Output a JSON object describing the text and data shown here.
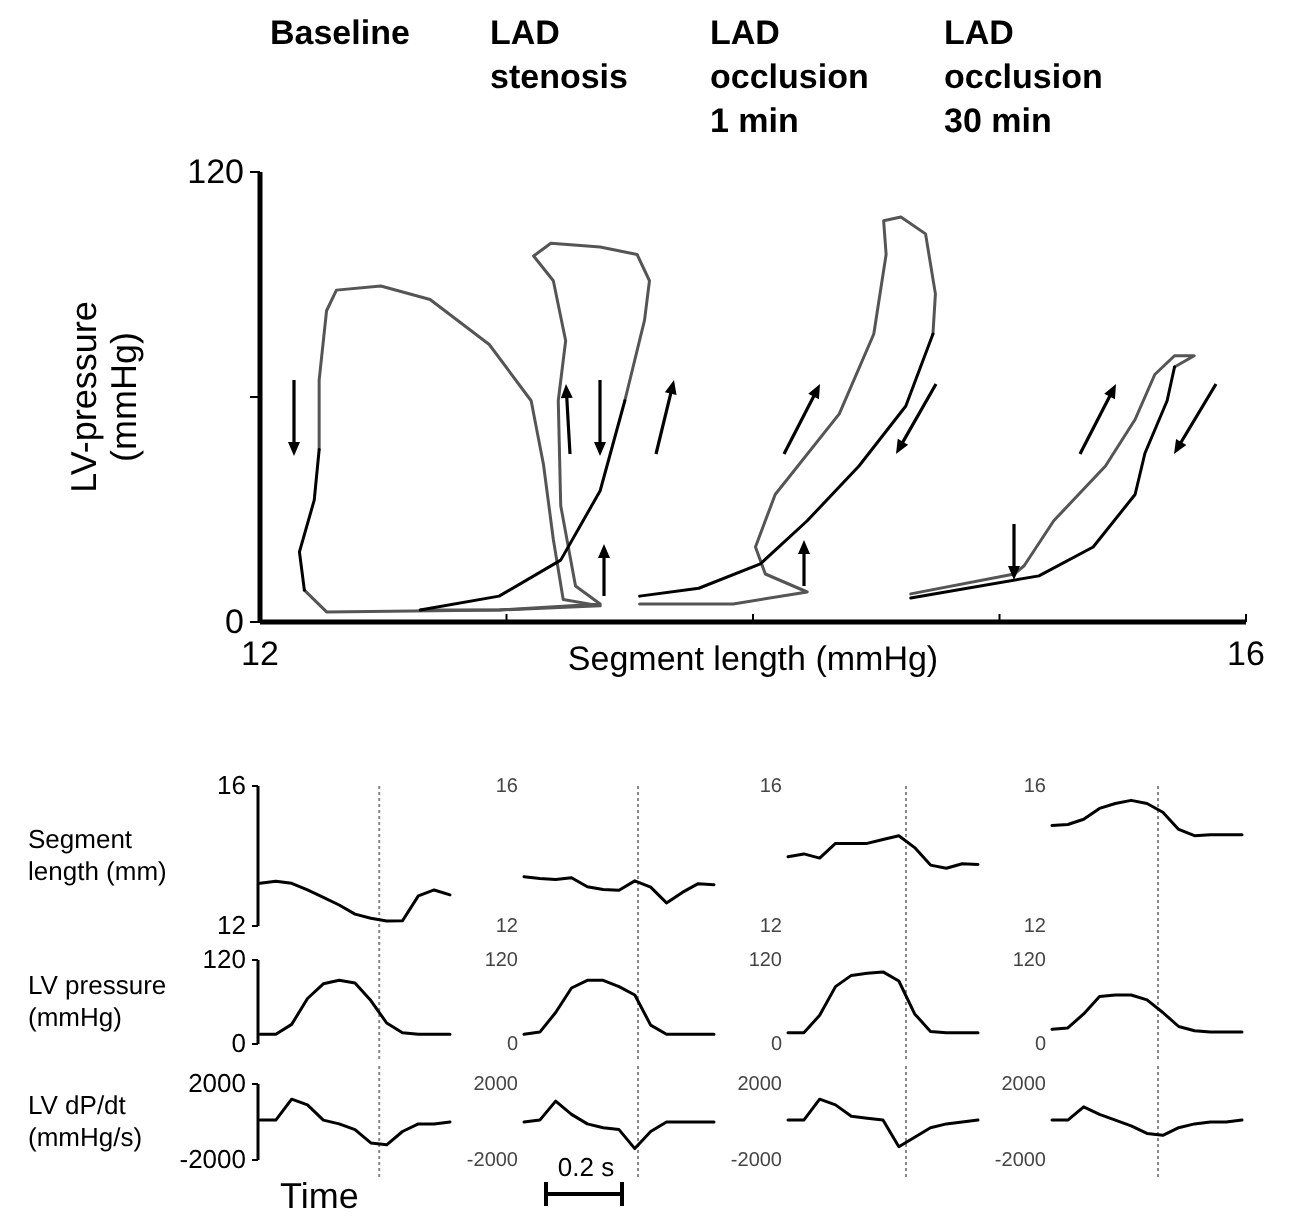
{
  "chart_data": [
    {
      "type": "line",
      "xlabel": "Segment length (mmHg)",
      "ylabel": "LV-pressure (mmHg)",
      "xlim": [
        12,
        16
      ],
      "ylim": [
        0,
        120
      ],
      "xticks": [
        12,
        {
          "value": 13,
          "label": null
        },
        {
          "value": 14,
          "label": null
        },
        {
          "value": 15,
          "label": null
        },
        16
      ],
      "yticks": [
        0,
        {
          "value": 60,
          "label": null
        },
        120
      ],
      "annotations": [
        "Baseline",
        "LAD stenosis",
        "LAD occlusion 1 min",
        "LAD occlusion 30 min"
      ],
      "series": [
        {
          "color": "#555555",
          "x": [
            12.24,
            12.24,
            12.27,
            12.31,
            12.49,
            12.69,
            12.93,
            13.1,
            13.15,
            13.19,
            13.23,
            13.38,
            12.97,
            12.27,
            12.18
          ],
          "values": [
            46,
            64.5,
            83,
            88.5,
            89.6,
            86,
            74,
            59,
            42,
            22,
            6,
            4.3,
            3.2,
            2.7,
            8.5
          ]
        },
        {
          "color": "#000000",
          "x": [
            12.24,
            12.22,
            12.16,
            12.18
          ],
          "values": [
            46,
            32.5,
            18.7,
            8.5
          ]
        },
        {
          "color": "#555555",
          "x": [
            13.48,
            13.56,
            13.58,
            13.53,
            13.38,
            13.18,
            13.11,
            13.19,
            13.24,
            13.21,
            13.22,
            13.28,
            13.38,
            12.97,
            12.65
          ],
          "values": [
            59,
            80.5,
            91,
            98,
            100,
            101,
            97.6,
            91,
            75,
            59,
            31,
            9.6,
            4.8,
            3.2,
            3.2
          ]
        },
        {
          "color": "#000000",
          "x": [
            12.65,
            12.97,
            13.22,
            13.38,
            13.48
          ],
          "values": [
            3.2,
            6.9,
            16.5,
            35,
            59
          ]
        },
        {
          "color": "#555555",
          "x": [
            14.73,
            14.74,
            14.7,
            14.6,
            14.53,
            14.54,
            14.49,
            14.35,
            14.09,
            14.01,
            14.05,
            14.22,
            13.92,
            13.54
          ],
          "values": [
            76.8,
            87.5,
            103.5,
            108,
            107,
            98,
            76.8,
            55.5,
            34,
            20,
            12.8,
            8,
            4.8,
            4.8
          ]
        },
        {
          "color": "#000000",
          "x": [
            13.54,
            13.78,
            14.03,
            14.22,
            14.43,
            14.62,
            14.73
          ],
          "values": [
            6.9,
            9,
            15.5,
            27,
            41.6,
            57.6,
            76.8
          ]
        },
        {
          "color": "#555555",
          "x": [
            14.64,
            15.06,
            15.1,
            15.22,
            15.43,
            15.55,
            15.63,
            15.71,
            15.79,
            15.71
          ],
          "values": [
            7.5,
            12.8,
            15,
            27,
            41.6,
            54,
            66,
            71,
            71,
            68
          ]
        },
        {
          "color": "#000000",
          "x": [
            15.71,
            15.68,
            15.59,
            15.55,
            15.38,
            15.16,
            14.64
          ],
          "values": [
            68,
            59,
            45,
            34,
            20,
            12.3,
            6.4
          ]
        }
      ]
    },
    {
      "type": "line",
      "ylabel": "Segment length (mm)",
      "ylim": [
        12,
        16
      ],
      "yticks": [
        12,
        16
      ],
      "tick_labels": "y",
      "categories": [
        null,
        null,
        null,
        null,
        null,
        null,
        null,
        null,
        null,
        null,
        null,
        null,
        null
      ],
      "series": [
        {
          "color": "#000000",
          "values": [
            13.22,
            13.28,
            13.22,
            13.03,
            12.82,
            12.6,
            12.34,
            12.22,
            12.14,
            12.15,
            12.86,
            13.03,
            12.89
          ]
        }
      ]
    },
    {
      "type": "line",
      "ylim": [
        12,
        16
      ],
      "yticks": [
        12,
        16
      ],
      "tick_labels": "y",
      "categories": [
        null,
        null,
        null,
        null,
        null,
        null,
        null,
        null,
        null,
        null,
        null,
        null,
        null
      ],
      "series": [
        {
          "color": "#000000",
          "values": [
            13.41,
            13.36,
            13.33,
            13.38,
            13.12,
            13.04,
            13.02,
            13.29,
            13.11,
            12.66,
            12.96,
            13.21,
            13.18
          ]
        }
      ]
    },
    {
      "type": "line",
      "ylim": [
        12,
        16
      ],
      "yticks": [
        12,
        16
      ],
      "tick_labels": "y",
      "categories": [
        null,
        null,
        null,
        null,
        null,
        null,
        null,
        null,
        null,
        null,
        null,
        null,
        null
      ],
      "series": [
        {
          "color": "#000000",
          "values": [
            13.98,
            14.06,
            13.94,
            14.36,
            14.36,
            14.36,
            14.47,
            14.58,
            14.24,
            13.74,
            13.65,
            13.78,
            13.76
          ]
        }
      ]
    },
    {
      "type": "line",
      "ylim": [
        12,
        16
      ],
      "yticks": [
        12,
        16
      ],
      "tick_labels": "y",
      "categories": [
        null,
        null,
        null,
        null,
        null,
        null,
        null,
        null,
        null,
        null,
        null,
        null,
        null
      ],
      "series": [
        {
          "color": "#000000",
          "values": [
            14.87,
            14.9,
            15.05,
            15.36,
            15.5,
            15.59,
            15.5,
            15.25,
            14.76,
            14.58,
            14.61,
            14.61,
            14.61
          ]
        }
      ]
    },
    {
      "type": "line",
      "ylabel": "LV pressure (mmHg)",
      "ylim": [
        0,
        120
      ],
      "yticks": [
        0,
        120
      ],
      "tick_labels": "y",
      "categories": [
        null,
        null,
        null,
        null,
        null,
        null,
        null,
        null,
        null,
        null,
        null,
        null,
        null
      ],
      "series": [
        {
          "color": "#000000",
          "values": [
            14,
            14,
            28,
            65,
            86,
            91,
            87,
            62,
            30,
            16,
            14,
            14,
            14
          ]
        }
      ]
    },
    {
      "type": "line",
      "ylim": [
        0,
        120
      ],
      "yticks": [
        0,
        120
      ],
      "tick_labels": "y",
      "categories": [
        null,
        null,
        null,
        null,
        null,
        null,
        null,
        null,
        null,
        null,
        null,
        null,
        null
      ],
      "series": [
        {
          "color": "#000000",
          "values": [
            14,
            17,
            45,
            80,
            91,
            91,
            82,
            70,
            27,
            14,
            14,
            14,
            14
          ]
        }
      ]
    },
    {
      "type": "line",
      "ylim": [
        0,
        120
      ],
      "yticks": [
        0,
        120
      ],
      "tick_labels": "y",
      "categories": [
        null,
        null,
        null,
        null,
        null,
        null,
        null,
        null,
        null,
        null,
        null,
        null,
        null
      ],
      "series": [
        {
          "color": "#000000",
          "values": [
            16,
            16,
            41,
            82,
            98,
            101,
            103,
            90,
            43,
            18,
            16,
            16,
            16
          ]
        }
      ]
    },
    {
      "type": "line",
      "ylim": [
        0,
        120
      ],
      "yticks": [
        0,
        120
      ],
      "tick_labels": "y",
      "categories": [
        null,
        null,
        null,
        null,
        null,
        null,
        null,
        null,
        null,
        null,
        null,
        null,
        null
      ],
      "series": [
        {
          "color": "#000000",
          "values": [
            21,
            23,
            43,
            68,
            70,
            70,
            63,
            45,
            25,
            19,
            17,
            17,
            17
          ]
        }
      ]
    },
    {
      "type": "line",
      "ylabel": "LV dP/dt (mmHg/s)",
      "xlabel": "Time",
      "ylim": [
        -2000,
        2000
      ],
      "yticks": [
        -2000,
        2000
      ],
      "tick_labels": "y",
      "annotations": [
        "0.2 s"
      ],
      "categories": [
        null,
        null,
        null,
        null,
        null,
        null,
        null,
        null,
        null,
        null,
        null,
        null,
        null
      ],
      "series": [
        {
          "color": "#000000",
          "values": [
            100,
            100,
            1200,
            900,
            100,
            -100,
            -400,
            -1100,
            -1200,
            -500,
            -100,
            -100,
            0
          ]
        }
      ]
    },
    {
      "type": "line",
      "ylim": [
        -2000,
        2000
      ],
      "yticks": [
        -2000,
        2000
      ],
      "tick_labels": "y",
      "categories": [
        null,
        null,
        null,
        null,
        null,
        null,
        null,
        null,
        null,
        null,
        null,
        null,
        null
      ],
      "series": [
        {
          "color": "#000000",
          "values": [
            0,
            100,
            1100,
            400,
            -100,
            -300,
            -400,
            -1400,
            -500,
            0,
            0,
            0,
            0
          ]
        }
      ]
    },
    {
      "type": "line",
      "ylim": [
        -2000,
        2000
      ],
      "yticks": [
        -2000,
        2000
      ],
      "tick_labels": "y",
      "categories": [
        null,
        null,
        null,
        null,
        null,
        null,
        null,
        null,
        null,
        null,
        null,
        null,
        null
      ],
      "series": [
        {
          "color": "#000000",
          "values": [
            100,
            100,
            1200,
            900,
            300,
            200,
            100,
            -1300,
            -800,
            -300,
            -100,
            0,
            100
          ]
        }
      ]
    },
    {
      "type": "line",
      "ylim": [
        -2000,
        2000
      ],
      "yticks": [
        -2000,
        2000
      ],
      "tick_labels": "y",
      "categories": [
        null,
        null,
        null,
        null,
        null,
        null,
        null,
        null,
        null,
        null,
        null,
        null,
        null
      ],
      "series": [
        {
          "color": "#000000",
          "values": [
            100,
            100,
            800,
            400,
            100,
            -200,
            -600,
            -700,
            -300,
            -100,
            0,
            0,
            100
          ]
        }
      ]
    }
  ]
}
